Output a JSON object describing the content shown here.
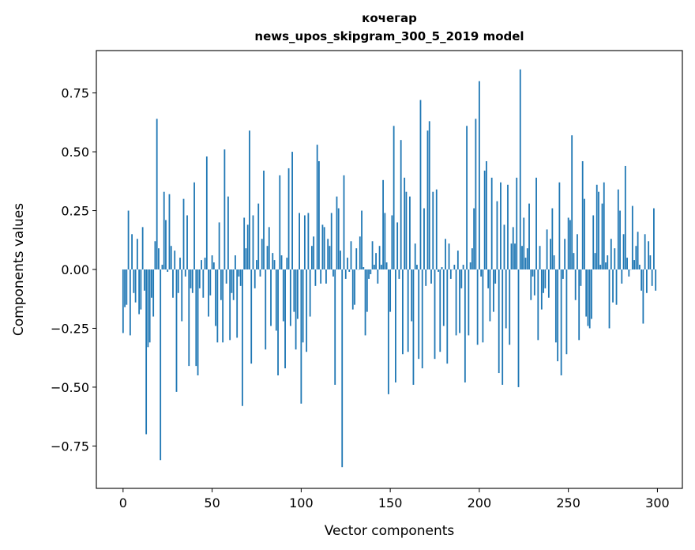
{
  "chart_data": {
    "type": "bar",
    "title": "кочегар",
    "subtitle": "news_upos_skipgram_300_5_2019 model",
    "xlabel": "Vector components",
    "ylabel": "Components values",
    "xlim": [
      -15,
      314
    ],
    "ylim": [
      -0.93,
      0.93
    ],
    "x_ticks": [
      0,
      50,
      100,
      150,
      200,
      250,
      300
    ],
    "x_tick_labels": [
      "0",
      "50",
      "100",
      "150",
      "200",
      "250",
      "300"
    ],
    "y_ticks": [
      0.75,
      0.5,
      0.25,
      0.0,
      -0.25,
      -0.5,
      -0.75
    ],
    "y_tick_labels": [
      "0.75",
      "0.50",
      "0.25",
      "0.00",
      "−0.25",
      "−0.50",
      "−0.75"
    ],
    "grid": false,
    "bar_color": "#1f77b4",
    "x": [
      0,
      1,
      2,
      3,
      4,
      5,
      6,
      7,
      8,
      9,
      10,
      11,
      12,
      13,
      14,
      15,
      16,
      17,
      18,
      19,
      20,
      21,
      22,
      23,
      24,
      25,
      26,
      27,
      28,
      29,
      30,
      31,
      32,
      33,
      34,
      35,
      36,
      37,
      38,
      39,
      40,
      41,
      42,
      43,
      44,
      45,
      46,
      47,
      48,
      49,
      50,
      51,
      52,
      53,
      54,
      55,
      56,
      57,
      58,
      59,
      60,
      61,
      62,
      63,
      64,
      65,
      66,
      67,
      68,
      69,
      70,
      71,
      72,
      73,
      74,
      75,
      76,
      77,
      78,
      79,
      80,
      81,
      82,
      83,
      84,
      85,
      86,
      87,
      88,
      89,
      90,
      91,
      92,
      93,
      94,
      95,
      96,
      97,
      98,
      99,
      100,
      101,
      102,
      103,
      104,
      105,
      106,
      107,
      108,
      109,
      110,
      111,
      112,
      113,
      114,
      115,
      116,
      117,
      118,
      119,
      120,
      121,
      122,
      123,
      124,
      125,
      126,
      127,
      128,
      129,
      130,
      131,
      132,
      133,
      134,
      135,
      136,
      137,
      138,
      139,
      140,
      141,
      142,
      143,
      144,
      145,
      146,
      147,
      148,
      149,
      150,
      151,
      152,
      153,
      154,
      155,
      156,
      157,
      158,
      159,
      160,
      161,
      162,
      163,
      164,
      165,
      166,
      167,
      168,
      169,
      170,
      171,
      172,
      173,
      174,
      175,
      176,
      177,
      178,
      179,
      180,
      181,
      182,
      183,
      184,
      185,
      186,
      187,
      188,
      189,
      190,
      191,
      192,
      193,
      194,
      195,
      196,
      197,
      198,
      199,
      200,
      201,
      202,
      203,
      204,
      205,
      206,
      207,
      208,
      209,
      210,
      211,
      212,
      213,
      214,
      215,
      216,
      217,
      218,
      219,
      220,
      221,
      222,
      223,
      224,
      225,
      226,
      227,
      228,
      229,
      230,
      231,
      232,
      233,
      234,
      235,
      236,
      237,
      238,
      239,
      240,
      241,
      242,
      243,
      244,
      245,
      246,
      247,
      248,
      249,
      250,
      251,
      252,
      253,
      254,
      255,
      256,
      257,
      258,
      259,
      260,
      261,
      262,
      263,
      264,
      265,
      266,
      267,
      268,
      269,
      270,
      271,
      272,
      273,
      274,
      275,
      276,
      277,
      278,
      279,
      280,
      281,
      282,
      283,
      284,
      285,
      286,
      287,
      288,
      289,
      290,
      291,
      292,
      293,
      294,
      295,
      296,
      297,
      298,
      299
    ],
    "values": [
      -0.27,
      -0.16,
      -0.15,
      0.25,
      -0.28,
      0.15,
      -0.1,
      -0.14,
      0.13,
      -0.19,
      -0.17,
      0.18,
      -0.09,
      -0.7,
      -0.33,
      -0.31,
      -0.12,
      -0.2,
      0.12,
      0.64,
      0.09,
      -0.81,
      0.02,
      0.33,
      0.21,
      -0.01,
      0.32,
      0.1,
      -0.12,
      0.08,
      -0.52,
      -0.1,
      0.05,
      -0.22,
      0.3,
      -0.03,
      0.23,
      -0.41,
      -0.08,
      -0.1,
      0.37,
      -0.41,
      -0.45,
      -0.08,
      0.04,
      -0.12,
      0.05,
      0.48,
      -0.2,
      -0.11,
      0.06,
      0.03,
      -0.24,
      -0.31,
      0.2,
      -0.13,
      -0.31,
      0.51,
      -0.06,
      0.31,
      -0.3,
      -0.1,
      -0.13,
      0.06,
      -0.29,
      -0.03,
      -0.07,
      -0.58,
      0.22,
      0.09,
      0.19,
      0.59,
      -0.4,
      0.23,
      -0.08,
      0.04,
      0.28,
      -0.03,
      0.13,
      0.42,
      -0.34,
      0.1,
      0.18,
      -0.24,
      0.07,
      0.04,
      -0.26,
      -0.45,
      0.4,
      0.06,
      -0.22,
      -0.42,
      0.05,
      0.43,
      -0.24,
      0.5,
      -0.18,
      -0.34,
      -0.21,
      0.24,
      -0.57,
      -0.31,
      0.23,
      -0.35,
      0.24,
      -0.2,
      0.1,
      0.14,
      -0.07,
      0.53,
      0.46,
      -0.06,
      0.19,
      0.18,
      -0.06,
      0.13,
      0.1,
      0.24,
      -0.03,
      -0.49,
      0.31,
      0.26,
      0.08,
      -0.84,
      0.4,
      -0.04,
      0.05,
      -0.01,
      0.12,
      -0.17,
      -0.15,
      0.09,
      0.0,
      0.14,
      0.25,
      0.01,
      -0.28,
      -0.18,
      -0.04,
      -0.02,
      0.12,
      0.02,
      0.07,
      -0.06,
      0.1,
      0.02,
      0.38,
      0.24,
      0.03,
      -0.53,
      -0.18,
      0.23,
      0.61,
      -0.48,
      0.2,
      -0.04,
      0.55,
      -0.36,
      0.39,
      0.33,
      -0.35,
      0.31,
      -0.22,
      -0.49,
      0.11,
      0.02,
      -0.38,
      0.72,
      -0.42,
      0.26,
      -0.07,
      0.59,
      0.63,
      -0.06,
      0.33,
      -0.38,
      0.34,
      -0.01,
      -0.35,
      0.01,
      -0.24,
      0.13,
      -0.4,
      0.11,
      -0.04,
      0.0,
      0.02,
      -0.28,
      0.08,
      -0.27,
      -0.08,
      0.02,
      -0.48,
      0.61,
      -0.28,
      0.03,
      0.09,
      0.26,
      0.64,
      -0.32,
      0.8,
      -0.03,
      -0.31,
      0.42,
      0.46,
      -0.08,
      -0.22,
      0.39,
      -0.18,
      -0.06,
      0.29,
      -0.44,
      0.37,
      -0.49,
      0.19,
      -0.25,
      0.36,
      -0.32,
      0.11,
      0.18,
      0.11,
      0.39,
      -0.5,
      0.85,
      0.1,
      0.22,
      0.05,
      0.09,
      0.28,
      -0.13,
      -0.03,
      -0.11,
      0.39,
      -0.3,
      0.1,
      -0.17,
      -0.1,
      -0.08,
      0.17,
      -0.12,
      0.13,
      0.26,
      0.06,
      -0.31,
      -0.39,
      0.37,
      -0.45,
      -0.04,
      0.13,
      -0.36,
      0.22,
      0.21,
      0.57,
      0.07,
      -0.13,
      0.15,
      -0.3,
      -0.07,
      0.46,
      0.3,
      -0.2,
      -0.24,
      -0.25,
      -0.21,
      0.23,
      0.07,
      0.36,
      0.33,
      0.02,
      0.28,
      0.37,
      0.03,
      0.06,
      -0.25,
      0.13,
      -0.14,
      0.09,
      -0.15,
      0.34,
      0.25,
      -0.06,
      0.15,
      0.44,
      0.05,
      -0.03,
      0.0,
      0.27,
      0.04,
      0.1,
      0.16,
      0.02,
      -0.09,
      -0.23,
      0.15,
      -0.1,
      0.12,
      0.06,
      -0.07,
      0.26,
      -0.09
    ]
  }
}
